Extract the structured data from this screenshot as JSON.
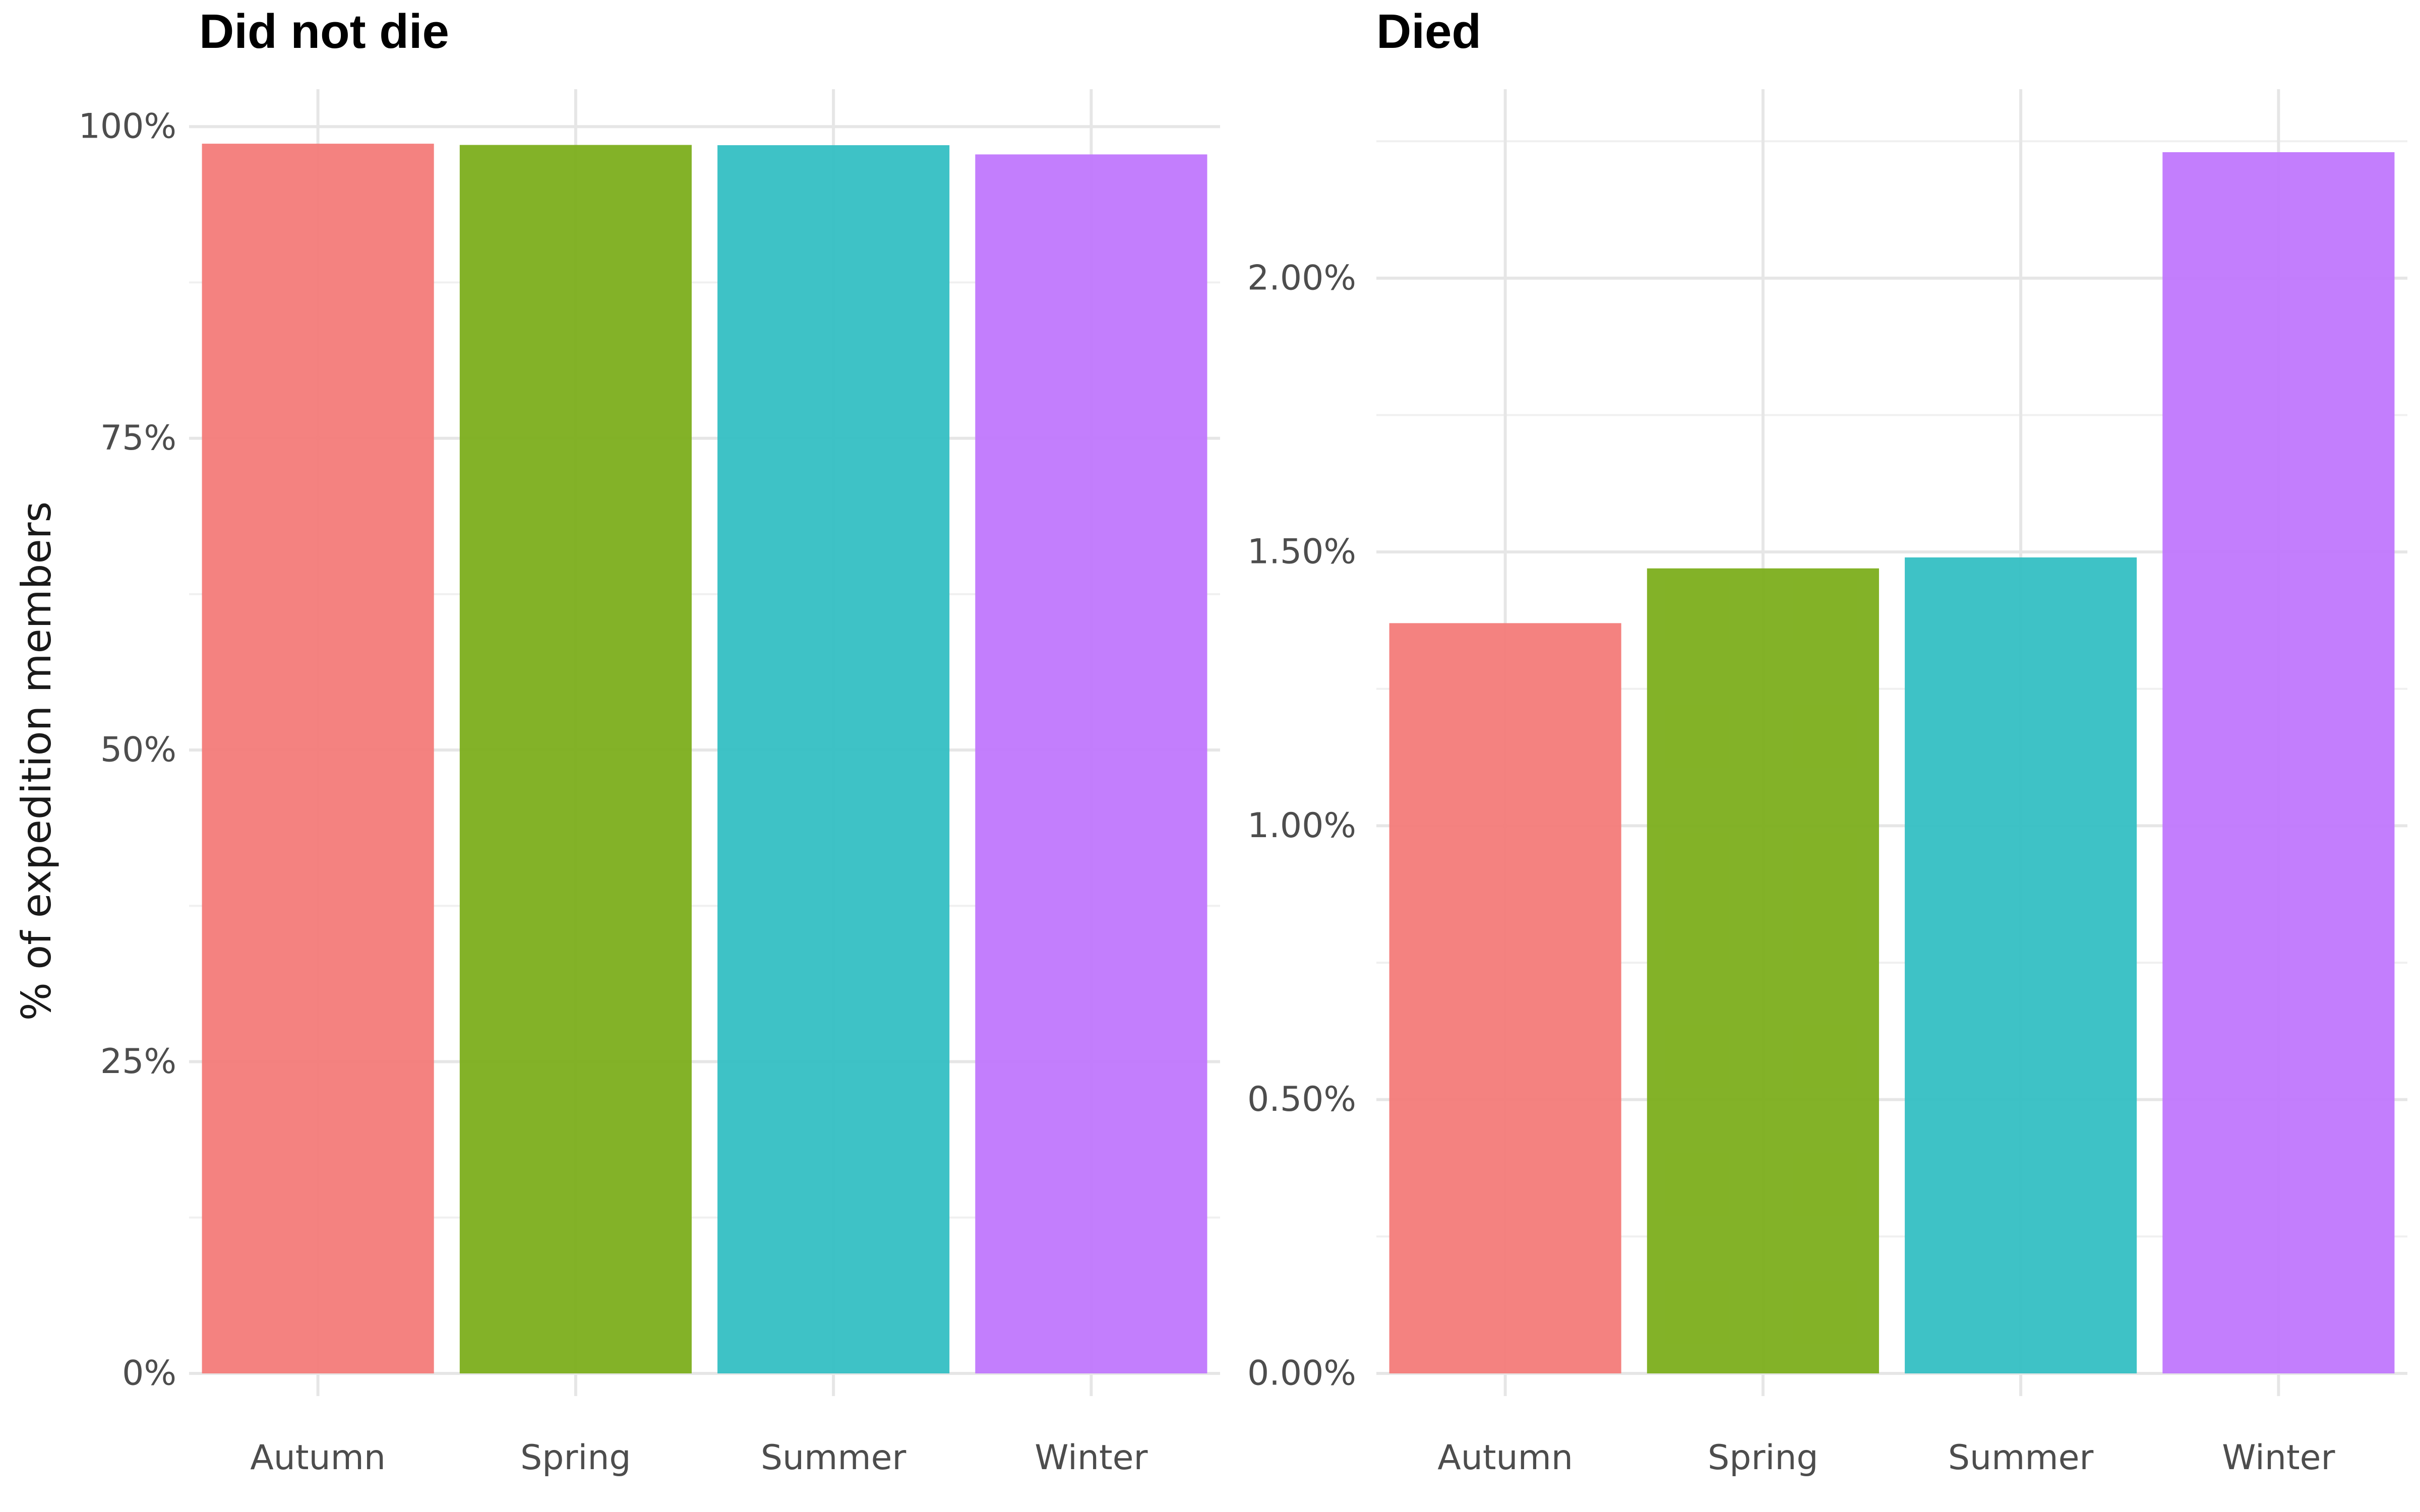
{
  "chart_data": {
    "type": "bar",
    "ylabel": "% of expedition members",
    "categories": [
      "Autumn",
      "Spring",
      "Summer",
      "Winter"
    ],
    "colors": {
      "Autumn": "#F37B79",
      "Spring": "#7CAE1C",
      "Summer": "#34BFC3",
      "Winter": "#C077FD"
    },
    "panels": [
      {
        "title": "Did not die",
        "ylim": [
          0,
          1.03
        ],
        "major_ticks": [
          0,
          0.25,
          0.5,
          0.75,
          1.0
        ],
        "minor_ticks": [
          0.125,
          0.375,
          0.625,
          0.875
        ],
        "tick_labels": [
          "0%",
          "25%",
          "50%",
          "75%",
          "100%"
        ],
        "values": [
          0.9863,
          0.9853,
          0.9851,
          0.9777
        ]
      },
      {
        "title": "Died",
        "ylim": [
          0,
          0.02345
        ],
        "major_ticks": [
          0,
          0.005,
          0.01,
          0.015,
          0.02
        ],
        "minor_ticks": [
          0.0025,
          0.0075,
          0.0125,
          0.0175,
          0.0225
        ],
        "tick_labels": [
          "0.00%",
          "0.50%",
          "1.00%",
          "1.50%",
          "2.00%"
        ],
        "values": [
          0.0137,
          0.0147,
          0.0149,
          0.0223
        ]
      }
    ],
    "grid": true,
    "legend": "none"
  }
}
